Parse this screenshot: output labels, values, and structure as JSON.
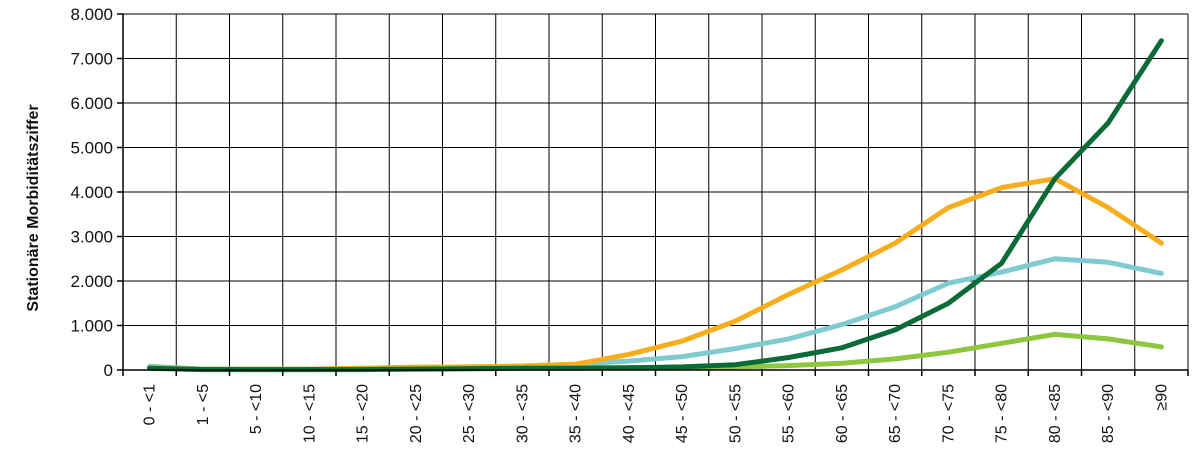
{
  "chart_data": {
    "type": "line",
    "ylabel": "Stationäre Morbiditätsziffer",
    "xlabel": "",
    "ylim": [
      0,
      8000
    ],
    "yticks": [
      "0",
      "1.000",
      "2.000",
      "3.000",
      "4.000",
      "5.000",
      "6.000",
      "7.000",
      "8.000"
    ],
    "ytick_values": [
      0,
      1000,
      2000,
      3000,
      4000,
      5000,
      6000,
      7000,
      8000
    ],
    "grid": true,
    "categories": [
      "0 - <1",
      "1 - <5",
      "5 - <10",
      "10 - <15",
      "15 - <20",
      "20 - <25",
      "25 - <30",
      "30 - <35",
      "35 - <40",
      "40 - <45",
      "45 - <50",
      "50 - <55",
      "55 - <60",
      "60 - <65",
      "65 - <70",
      "70 - <75",
      "75 - <80",
      "80 - <85",
      "85 - <90",
      "≥90"
    ],
    "series": [
      {
        "color": "#7fcbd1",
        "values": [
          80,
          20,
          20,
          20,
          40,
          60,
          70,
          90,
          130,
          200,
          300,
          480,
          700,
          1020,
          1420,
          1950,
          2200,
          2500,
          2420,
          2170
        ]
      },
      {
        "color": "#f7ad1c",
        "values": [
          50,
          20,
          20,
          20,
          40,
          60,
          70,
          90,
          130,
          350,
          650,
          1100,
          1700,
          2250,
          2850,
          3650,
          4100,
          4300,
          3650,
          2850
        ]
      },
      {
        "color": "#8dc63f",
        "values": [
          50,
          20,
          10,
          10,
          20,
          30,
          40,
          50,
          50,
          50,
          60,
          70,
          100,
          150,
          250,
          400,
          600,
          800,
          700,
          520
        ]
      },
      {
        "color": "#0b6b37",
        "values": [
          40,
          10,
          10,
          10,
          10,
          20,
          30,
          40,
          40,
          50,
          70,
          120,
          280,
          500,
          900,
          1500,
          2400,
          4300,
          5550,
          7400
        ]
      }
    ]
  }
}
